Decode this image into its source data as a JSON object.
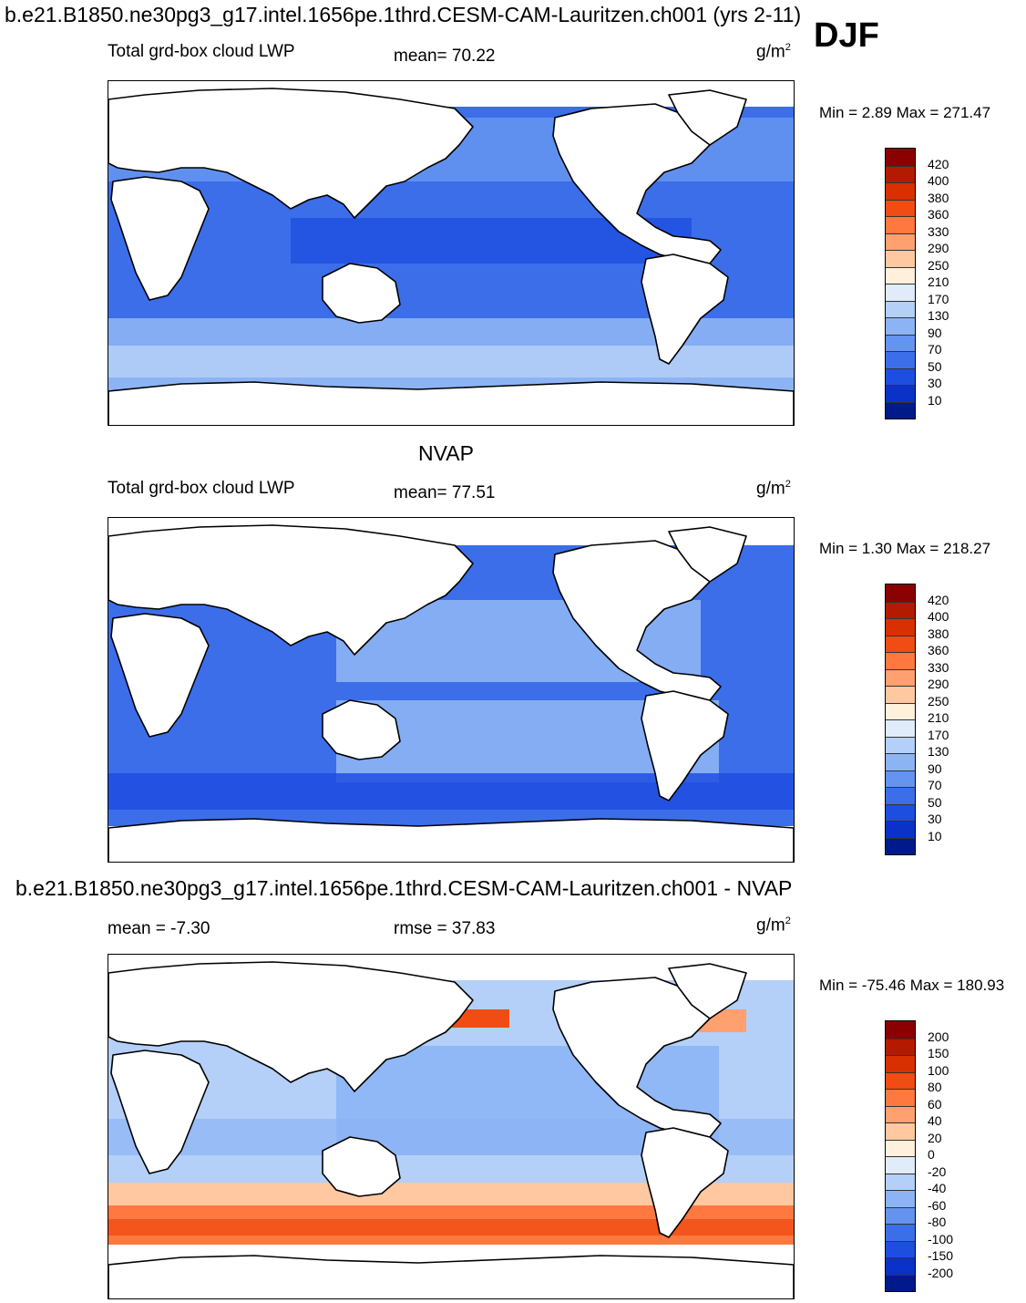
{
  "header": {
    "case_title": "b.e21.B1850.ne30pg3_g17.intel.1656pe.1thrd.CESM-CAM-Lauritzen.ch001 (yrs 2-11)",
    "season": "DJF"
  },
  "chart_data": [
    {
      "type": "heatmap",
      "title": "b.e21.B1850.ne30pg3_g17.intel.1656pe.1thrd.CESM-CAM-Lauritzen.ch001 (yrs 2-11)",
      "variable": "Total grd-box cloud LWP",
      "stat_label": "mean=  70.22",
      "units": "g/m",
      "units_exp": "2",
      "range_label": "Min =   2.89 Max = 271.47",
      "colorbar_levels": [
        "420",
        "400",
        "380",
        "360",
        "330",
        "290",
        "250",
        "210",
        "170",
        "130",
        "90",
        "70",
        "50",
        "30",
        "10"
      ],
      "colorbar_colors": [
        "#8b0000",
        "#b41a00",
        "#d93000",
        "#f04c14",
        "#ff7840",
        "#ffa070",
        "#ffc8a0",
        "#fff0dc",
        "#e0ecfa",
        "#b4d0f8",
        "#8cb4f5",
        "#6494f0",
        "#3c6eea",
        "#1e4ee0",
        "#0a32c8",
        "#001a8c"
      ],
      "min": 2.89,
      "max": 271.47,
      "mean": 70.22
    },
    {
      "type": "heatmap",
      "title": "NVAP",
      "variable": "Total grd-box cloud LWP",
      "stat_label": "mean=  77.51",
      "units": "g/m",
      "units_exp": "2",
      "range_label": "Min =   1.30 Max = 218.27",
      "colorbar_levels": [
        "420",
        "400",
        "380",
        "360",
        "330",
        "290",
        "250",
        "210",
        "170",
        "130",
        "90",
        "70",
        "50",
        "30",
        "10"
      ],
      "colorbar_colors": [
        "#8b0000",
        "#b41a00",
        "#d93000",
        "#f04c14",
        "#ff7840",
        "#ffa070",
        "#ffc8a0",
        "#fff0dc",
        "#e0ecfa",
        "#b4d0f8",
        "#8cb4f5",
        "#6494f0",
        "#3c6eea",
        "#1e4ee0",
        "#0a32c8",
        "#001a8c"
      ],
      "min": 1.3,
      "max": 218.27,
      "mean": 77.51
    },
    {
      "type": "heatmap",
      "title": "b.e21.B1850.ne30pg3_g17.intel.1656pe.1thrd.CESM-CAM-Lauritzen.ch001 - NVAP",
      "variable": "",
      "stat_label": "mean =  -7.30",
      "stat2_label": "rmse =  37.83",
      "units": "g/m",
      "units_exp": "2",
      "range_label": "Min = -75.46 Max = 180.93",
      "colorbar_levels": [
        "200",
        "150",
        "100",
        "80",
        "60",
        "40",
        "20",
        "0",
        "-20",
        "-40",
        "-60",
        "-80",
        "-100",
        "-150",
        "-200"
      ],
      "colorbar_colors": [
        "#8b0000",
        "#b41a00",
        "#d93000",
        "#f04c14",
        "#ff7840",
        "#ffa070",
        "#ffc8a0",
        "#fff0dc",
        "#e0ecfa",
        "#b4d0f8",
        "#8cb4f5",
        "#6494f0",
        "#3c6eea",
        "#1e4ee0",
        "#0a32c8",
        "#001a8c"
      ],
      "min": -75.46,
      "max": 180.93,
      "mean": -7.3,
      "rmse": 37.83
    }
  ]
}
